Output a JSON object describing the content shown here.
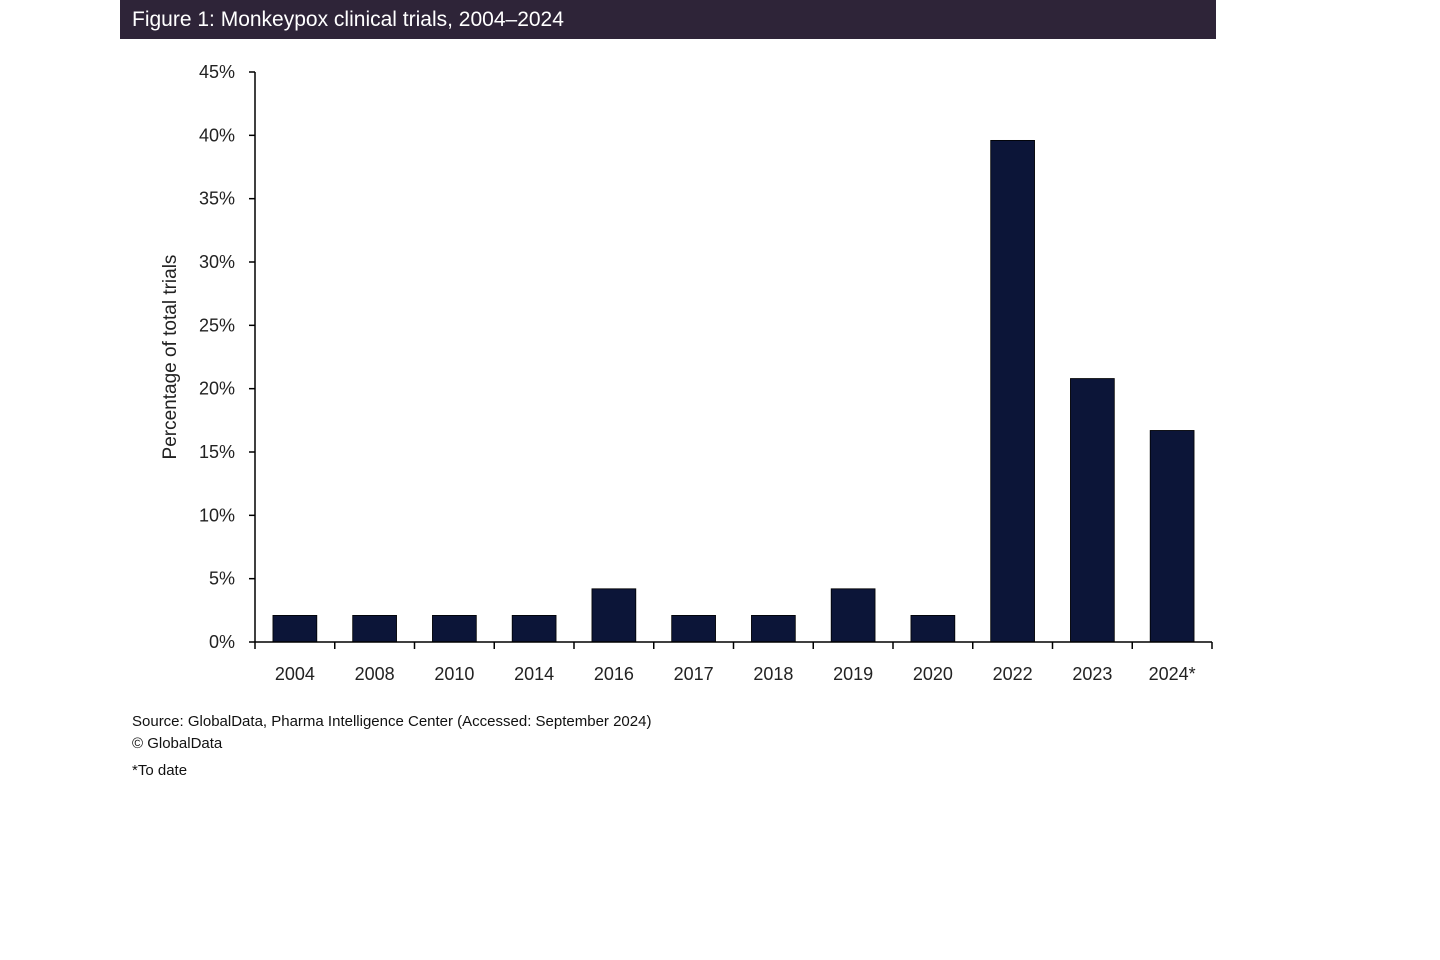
{
  "title": "Figure 1: Monkeypox clinical trials, 2004–2024",
  "colors": {
    "title_bg": "#2e2438",
    "bar": "#0c1538",
    "axis": "#000000"
  },
  "chart_data": {
    "type": "bar",
    "categories": [
      "2004",
      "2008",
      "2010",
      "2014",
      "2016",
      "2017",
      "2018",
      "2019",
      "2020",
      "2022",
      "2023",
      "2024*"
    ],
    "values": [
      2.1,
      2.1,
      2.1,
      2.1,
      4.2,
      2.1,
      2.1,
      4.2,
      2.1,
      39.6,
      20.8,
      16.7
    ],
    "ylabel": "Percentage of total trials",
    "xlabel": "",
    "ylim": [
      0,
      45
    ],
    "yticks": [
      0,
      5,
      10,
      15,
      20,
      25,
      30,
      35,
      40,
      45
    ],
    "ytick_labels": [
      "0%",
      "5%",
      "10%",
      "15%",
      "20%",
      "25%",
      "30%",
      "35%",
      "40%",
      "45%"
    ],
    "grid": false,
    "legend": "none"
  },
  "footer": {
    "source": "Source: GlobalData, Pharma Intelligence Center (Accessed: September 2024)",
    "copyright": "© GlobalData",
    "note": "*To date"
  }
}
